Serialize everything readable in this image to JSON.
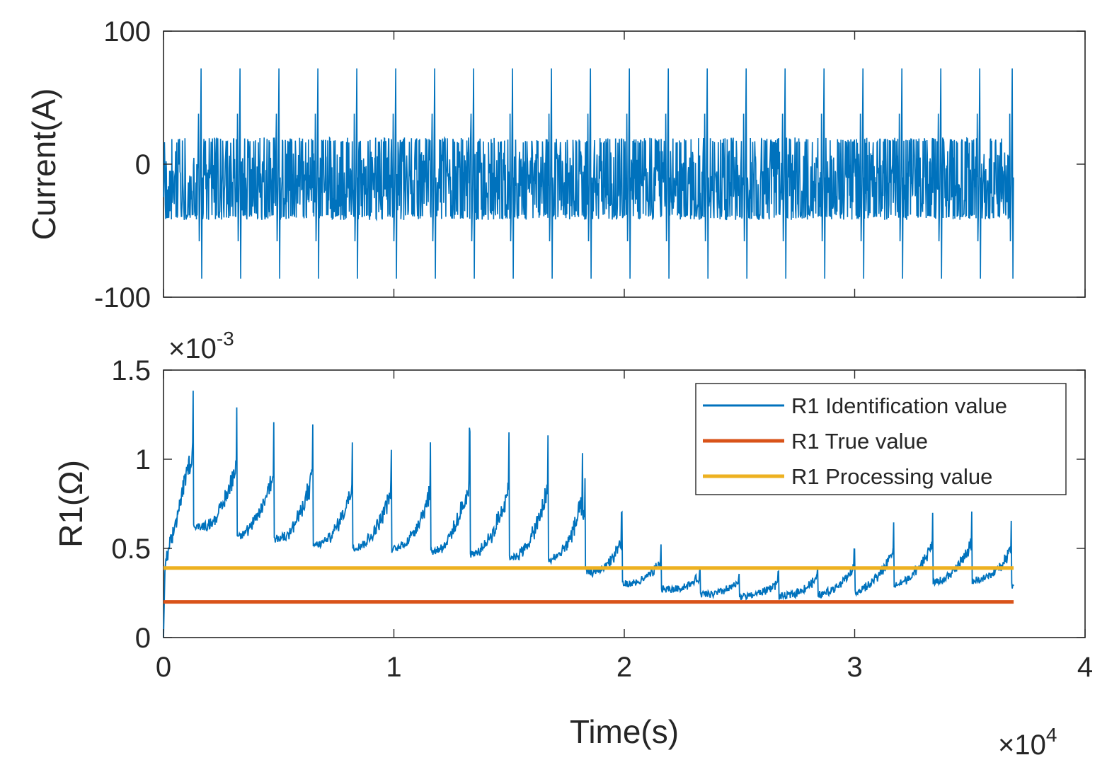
{
  "chart_data": [
    {
      "type": "line",
      "ylabel": "Current(A)",
      "xlabel": "",
      "xlim": [
        0,
        40000
      ],
      "ylim": [
        -100,
        100
      ],
      "yticks": [
        -100,
        0,
        100
      ],
      "ytick_labels": [
        "-100",
        "0",
        "100"
      ],
      "xticks": [
        0,
        10000,
        20000,
        30000,
        40000
      ],
      "xtick_labels_shown": false,
      "grid": false,
      "legend": null,
      "series": [
        {
          "color": "#0072BD",
          "description_pattern": "repeating drive-cycle pulses",
          "cycle_period_s": 1690,
          "cycle_count": 22,
          "t_start": 0,
          "t_end": 36900,
          "dense_band_max": 20,
          "dense_band_min": -42,
          "dense_band_mid": -15,
          "peak_max": 72,
          "peak_min": -86,
          "pre_peak_max": 38,
          "pre_peak_min": -58
        }
      ]
    },
    {
      "type": "line",
      "ylabel": "R1(Ω)",
      "xlabel": "Time(s)",
      "xlim": [
        0,
        40000
      ],
      "ylim": [
        0,
        0.0015
      ],
      "y_multiplier": "×10",
      "y_multiplier_exp": "-3",
      "x_multiplier": "×10",
      "x_multiplier_exp": "4",
      "yticks": [
        0,
        0.0005,
        0.001,
        0.0015
      ],
      "ytick_labels": [
        "0",
        "0.5",
        "1",
        "1.5"
      ],
      "xticks": [
        0,
        10000,
        20000,
        30000,
        40000
      ],
      "xtick_labels": [
        "0",
        "1",
        "2",
        "3",
        "4"
      ],
      "grid": false,
      "legend_position": "top-right",
      "series": [
        {
          "name": "R1 Identification value",
          "color": "#0072BD",
          "t_end": 36900,
          "cycle_period_s": 1690,
          "peak_envelope": [
            [
              1300,
              0.00137
            ],
            [
              3200,
              0.00131
            ],
            [
              4800,
              0.00121
            ],
            [
              6500,
              0.0012
            ],
            [
              8200,
              0.00109
            ],
            [
              9900,
              0.00107
            ],
            [
              11600,
              0.00108
            ],
            [
              13300,
              0.00116
            ],
            [
              15000,
              0.00115
            ],
            [
              16700,
              0.00114
            ],
            [
              18200,
              0.00105
            ],
            [
              18300,
              0.00089
            ],
            [
              19900,
              0.0007
            ],
            [
              21600,
              0.00053
            ],
            [
              23300,
              0.00041
            ],
            [
              25000,
              0.00037
            ],
            [
              26700,
              0.00037
            ],
            [
              28400,
              0.0004
            ],
            [
              30000,
              0.0005
            ],
            [
              31700,
              0.00063
            ],
            [
              33400,
              0.00069
            ],
            [
              35100,
              0.00069
            ],
            [
              36800,
              0.00065
            ]
          ],
          "base_envelope": [
            [
              100,
              0.00038
            ],
            [
              1000,
              0.00064
            ],
            [
              3000,
              0.00057
            ],
            [
              5000,
              0.00055
            ],
            [
              7000,
              0.00051
            ],
            [
              9000,
              0.0005
            ],
            [
              11000,
              0.00049
            ],
            [
              13000,
              0.00047
            ],
            [
              15000,
              0.00045
            ],
            [
              17000,
              0.00042
            ],
            [
              18300,
              0.00037
            ],
            [
              20000,
              0.0003
            ],
            [
              21800,
              0.00027
            ],
            [
              23500,
              0.00024
            ],
            [
              25200,
              0.00023
            ],
            [
              26900,
              0.00023
            ],
            [
              28600,
              0.00024
            ],
            [
              30200,
              0.00026
            ],
            [
              32000,
              0.0003
            ],
            [
              33600,
              0.00031
            ],
            [
              35300,
              0.00032
            ],
            [
              36900,
              0.00029
            ]
          ]
        },
        {
          "name": "R1 True value",
          "color": "#D95319",
          "x": [
            0,
            36900
          ],
          "y": [
            0.0002,
            0.0002
          ]
        },
        {
          "name": "R1 Processing value",
          "color": "#EDB120",
          "x": [
            0,
            36900
          ],
          "y": [
            0.00039,
            0.00039
          ]
        }
      ]
    }
  ]
}
